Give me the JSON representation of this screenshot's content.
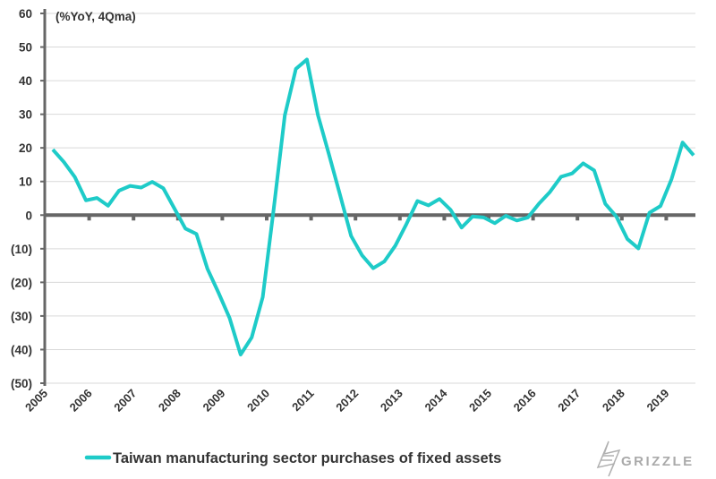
{
  "chart_data": {
    "type": "line",
    "title": "",
    "unit_note": "(%YoY, 4Qma)",
    "xlabel": "",
    "ylabel": "",
    "ylim": [
      -50,
      60
    ],
    "yticks": [
      60,
      50,
      40,
      30,
      20,
      10,
      0,
      -10,
      -20,
      -30,
      -40,
      -50
    ],
    "ytick_labels": [
      "60",
      "50",
      "40",
      "30",
      "20",
      "10",
      "0",
      "(10)",
      "(20)",
      "(30)",
      "(40)",
      "(50)"
    ],
    "xtick_labels": [
      "2005",
      "2006",
      "2007",
      "2008",
      "2009",
      "2010",
      "2011",
      "2012",
      "2013",
      "2014",
      "2015",
      "2016",
      "2017",
      "2018",
      "2019"
    ],
    "grid": true,
    "legend_position": "bottom",
    "series": [
      {
        "name": "Taiwan manufacturing sector purchases of fixed assets",
        "color": "#1ecbc8",
        "values": [
          19.5,
          15.8,
          11.3,
          4.4,
          5.1,
          2.8,
          7.3,
          8.7,
          8.2,
          9.9,
          8.0,
          2.0,
          -4.0,
          -5.6,
          -16.0,
          -23.1,
          -30.6,
          -41.5,
          -36.4,
          -24.4,
          2.0,
          29.7,
          43.5,
          46.3,
          29.7,
          18.0,
          6.0,
          -6.2,
          -12.0,
          -15.8,
          -13.8,
          -9.1,
          -2.7,
          4.2,
          2.9,
          4.8,
          1.6,
          -3.7,
          -0.4,
          -0.7,
          -2.4,
          -0.2,
          -1.6,
          -0.7,
          3.4,
          6.9,
          11.4,
          12.4,
          15.4,
          13.3,
          3.4,
          -0.4,
          -7.1,
          -9.9,
          0.7,
          2.7,
          10.7,
          21.6,
          17.8
        ]
      }
    ]
  },
  "logo": {
    "text": "GRIZZLE"
  }
}
